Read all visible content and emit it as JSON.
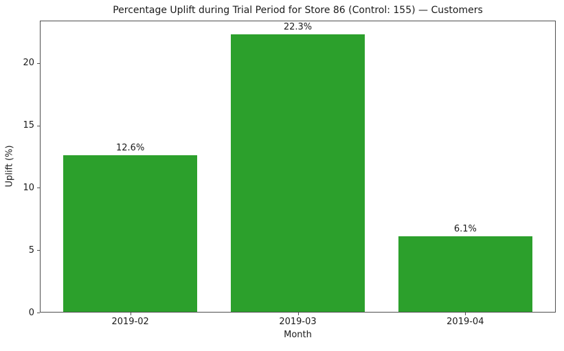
{
  "figure": {
    "background": "#ffffff",
    "text_color": "#1a1a1a",
    "spine_color": "#4d4d4d"
  },
  "chart_data": {
    "type": "bar",
    "title": "Percentage Uplift during Trial Period for Store 86 (Control: 155) — Customers",
    "xlabel": "Month",
    "ylabel": "Uplift (%)",
    "categories": [
      "2019-02",
      "2019-03",
      "2019-04"
    ],
    "values": [
      12.6,
      22.3,
      6.1
    ],
    "value_labels": [
      "12.6%",
      "22.3%",
      "6.1%"
    ],
    "bar_color": "#2ca02c",
    "bar_width_fraction": 0.8,
    "ylim": [
      0,
      23.4
    ],
    "yticks": [
      0,
      5,
      10,
      15,
      20
    ],
    "grid": false,
    "legend_position": "none"
  }
}
